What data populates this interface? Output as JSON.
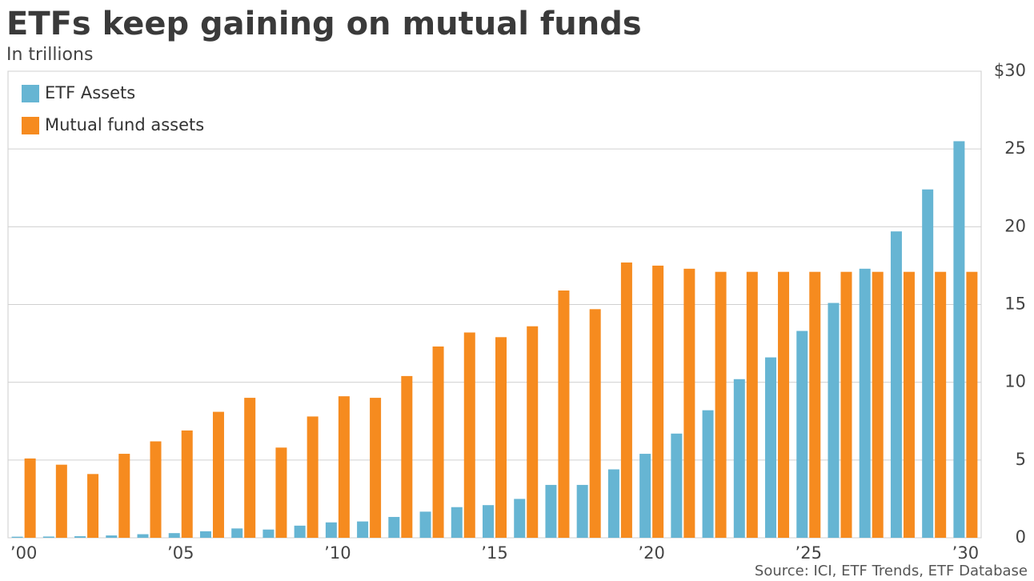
{
  "chart_data": {
    "type": "bar",
    "title": "ETFs keep gaining on mutual funds",
    "subtitle": "In trillions",
    "source": "Source: ICI, ETF Trends, ETF Database",
    "categories": [
      "’00",
      null,
      null,
      null,
      null,
      "’05",
      null,
      null,
      null,
      null,
      "’10",
      null,
      null,
      null,
      null,
      "’15",
      null,
      null,
      null,
      null,
      "’20",
      null,
      null,
      null,
      null,
      "’25",
      null,
      null,
      null,
      null,
      "’30"
    ],
    "series": [
      {
        "name": "ETF Assets",
        "color": "#66b5d3",
        "values": [
          0.07,
          0.08,
          0.1,
          0.15,
          0.23,
          0.3,
          0.42,
          0.6,
          0.53,
          0.78,
          0.99,
          1.05,
          1.34,
          1.68,
          1.97,
          2.1,
          2.5,
          3.4,
          3.4,
          4.4,
          5.4,
          6.7,
          8.2,
          10.2,
          11.6,
          13.3,
          15.1,
          17.3,
          19.7,
          22.4,
          25.5
        ]
      },
      {
        "name": "Mutual fund assets",
        "color": "#f68b1f",
        "values": [
          5.1,
          4.7,
          4.1,
          5.4,
          6.2,
          6.9,
          8.1,
          9.0,
          5.8,
          7.8,
          9.1,
          9.0,
          10.4,
          12.3,
          13.2,
          12.9,
          13.6,
          15.9,
          14.7,
          17.7,
          17.5,
          17.3,
          17.1,
          17.1,
          17.1,
          17.1,
          17.1,
          17.1,
          17.1,
          17.1,
          17.1
        ]
      }
    ],
    "ylim": [
      0,
      30
    ],
    "yticks": [
      0,
      5,
      10,
      15,
      20,
      25,
      {
        "value": 30,
        "label": "$30"
      }
    ],
    "grid": true,
    "legend": "top-left"
  }
}
